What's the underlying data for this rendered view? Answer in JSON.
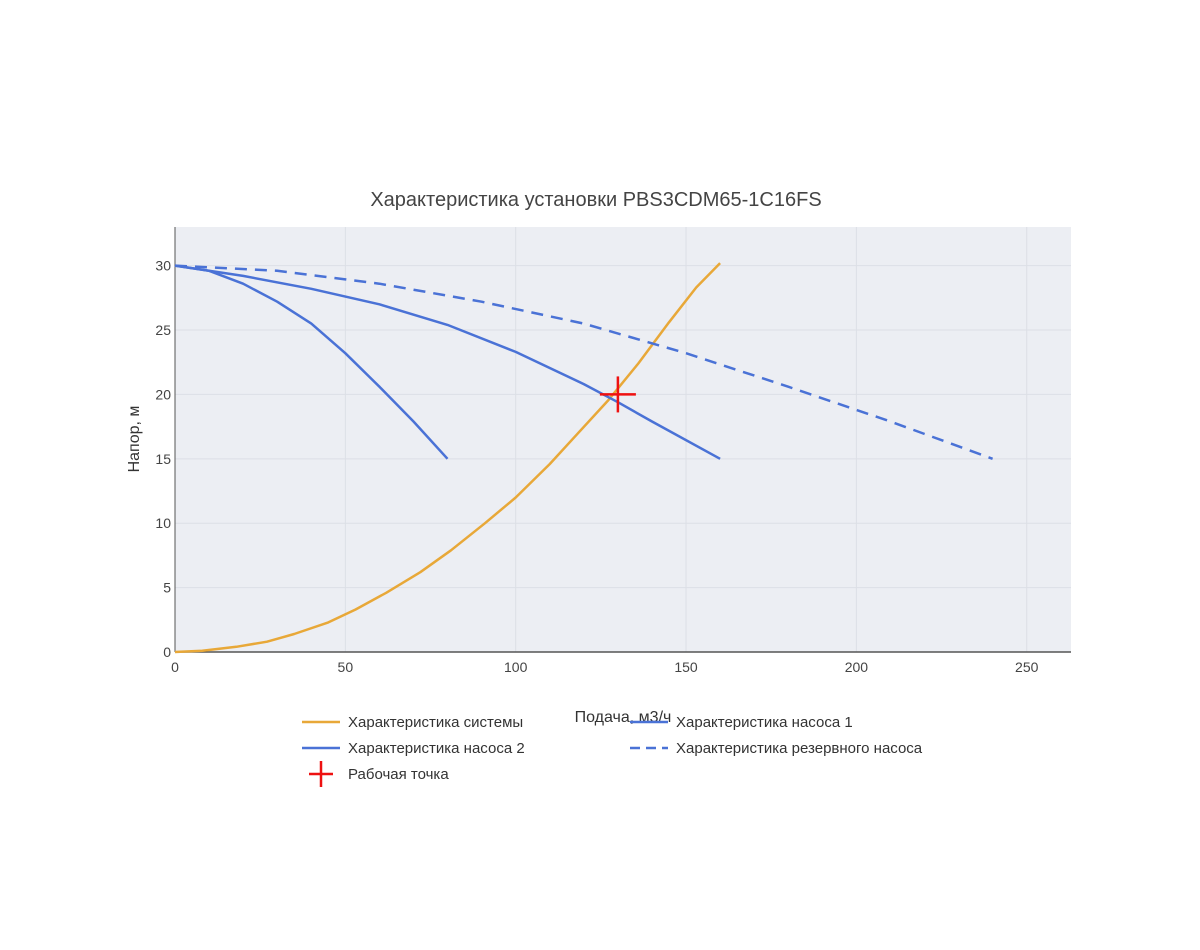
{
  "chart_data": {
    "type": "line",
    "title": "Характеристика установки PBS3CDM65-1C16FS",
    "xlabel": "Подача, м3/ч",
    "ylabel": "Напор, м",
    "xlim": [
      0,
      263
    ],
    "ylim": [
      0,
      33
    ],
    "x_ticks": [
      0,
      50,
      100,
      150,
      200,
      250
    ],
    "y_ticks": [
      0,
      5,
      10,
      15,
      20,
      25,
      30
    ],
    "grid": true,
    "legend_position": "bottom",
    "series": [
      {
        "name": "Характеристика системы",
        "color": "#e8a838",
        "dash": "solid",
        "x": [
          0,
          8,
          18,
          27,
          35,
          45,
          53,
          62,
          72,
          81,
          91,
          100,
          110,
          118,
          127,
          136,
          145,
          153,
          160
        ],
        "y": [
          0,
          0.1,
          0.4,
          0.8,
          1.4,
          2.3,
          3.3,
          4.6,
          6.2,
          7.9,
          10.0,
          12.0,
          14.6,
          16.9,
          19.5,
          22.4,
          25.6,
          28.3,
          30.2
        ]
      },
      {
        "name": "Характеристика насоса 1",
        "color": "#4a72d6",
        "dash": "solid",
        "x": [
          0,
          10,
          20,
          30,
          40,
          50,
          60,
          70,
          80
        ],
        "y": [
          30,
          29.6,
          28.6,
          27.2,
          25.5,
          23.2,
          20.6,
          17.9,
          15.0
        ]
      },
      {
        "name": "Характеристика насоса 2",
        "color": "#4a72d6",
        "dash": "solid",
        "x": [
          0,
          20,
          40,
          60,
          80,
          100,
          120,
          130,
          140,
          160
        ],
        "y": [
          30,
          29.2,
          28.2,
          27.0,
          25.4,
          23.3,
          20.8,
          19.4,
          17.9,
          15.0
        ]
      },
      {
        "name": "Характеристика резервного насоса",
        "color": "#4a72d6",
        "dash": "dashed",
        "x": [
          0,
          30,
          60,
          90,
          120,
          150,
          180,
          210,
          240
        ],
        "y": [
          30,
          29.6,
          28.6,
          27.2,
          25.5,
          23.2,
          20.6,
          17.9,
          15.0
        ]
      }
    ],
    "markers": [
      {
        "name": "Рабочая точка",
        "color": "#ee1111",
        "symbol": "cross",
        "x": 130,
        "y": 20
      }
    ]
  }
}
